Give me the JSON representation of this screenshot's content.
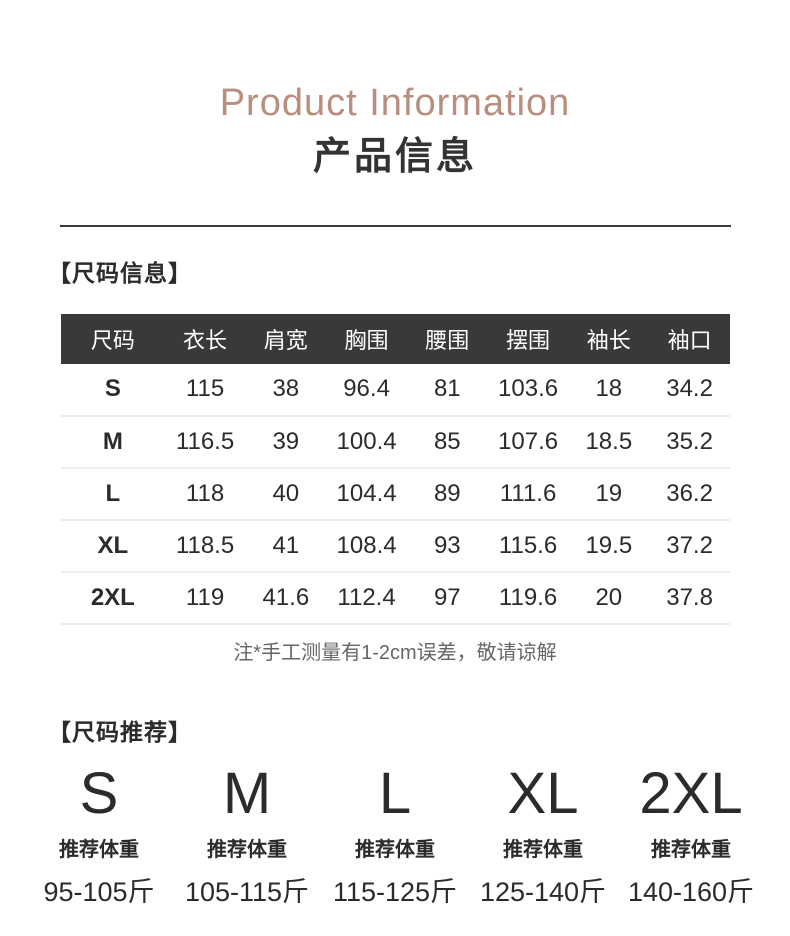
{
  "header": {
    "title_en": "Product Information",
    "title_cn": "产品信息"
  },
  "size_info": {
    "section_title": "【尺码信息】",
    "note": "注*手工测量有1-2cm误差，敬请谅解",
    "table": {
      "headers": [
        "尺码",
        "衣长",
        "肩宽",
        "胸围",
        "腰围",
        "摆围",
        "袖长",
        "袖口"
      ],
      "rows": [
        [
          "S",
          "115",
          "38",
          "96.4",
          "81",
          "103.6",
          "18",
          "34.2"
        ],
        [
          "M",
          "116.5",
          "39",
          "100.4",
          "85",
          "107.6",
          "18.5",
          "35.2"
        ],
        [
          "L",
          "118",
          "40",
          "104.4",
          "89",
          "111.6",
          "19",
          "36.2"
        ],
        [
          "XL",
          "118.5",
          "41",
          "108.4",
          "93",
          "115.6",
          "19.5",
          "37.2"
        ],
        [
          "2XL",
          "119",
          "41.6",
          "112.4",
          "97",
          "119.6",
          "20",
          "37.8"
        ]
      ]
    }
  },
  "size_recommendation": {
    "section_title": "【尺码推荐】",
    "items": [
      {
        "size": "S",
        "label": "推荐体重",
        "range": "95-105斤"
      },
      {
        "size": "M",
        "label": "推荐体重",
        "range": "105-115斤"
      },
      {
        "size": "L",
        "label": "推荐体重",
        "range": "115-125斤"
      },
      {
        "size": "XL",
        "label": "推荐体重",
        "range": "125-140斤"
      },
      {
        "size": "2XL",
        "label": "推荐体重",
        "range": "140-160斤"
      }
    ]
  },
  "colors": {
    "accent": "#b98e7e",
    "table_header_bg": "#3a3937",
    "table_header_text": "#ffffff",
    "divider": "#3a3a3a",
    "row_separator": "#ededed",
    "body_text": "#2b2b2b",
    "note_text": "#666666"
  }
}
